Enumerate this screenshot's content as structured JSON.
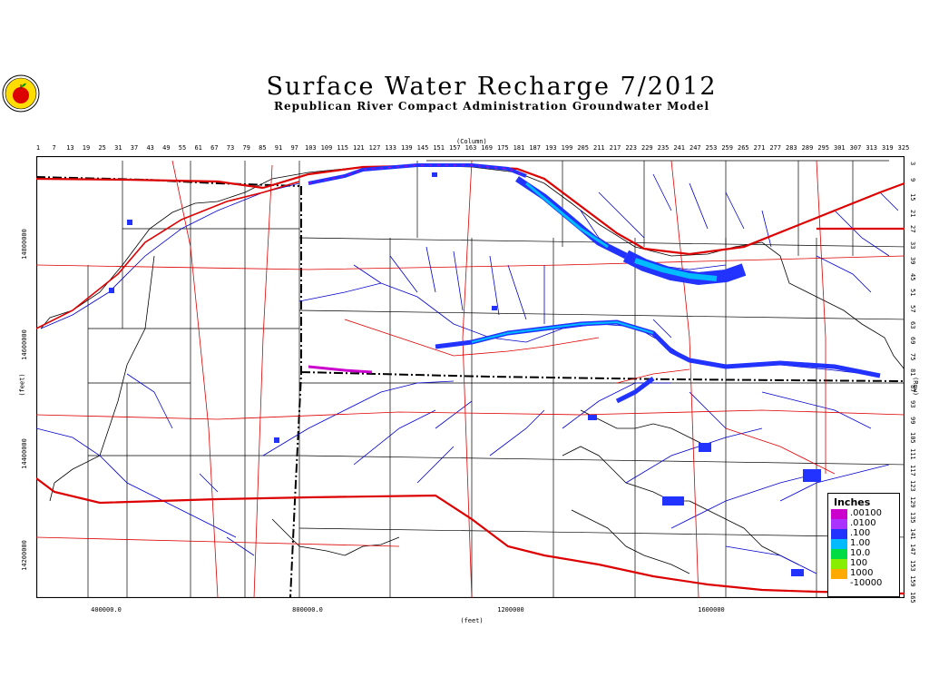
{
  "title": "Surface Water Recharge 7/2012",
  "subtitle": "Republican River Compact Administration Groundwater Model",
  "axes": {
    "column_label": "(Column)",
    "row_label": "(Row)",
    "x_label": "(feet)",
    "y_label": "(feet)",
    "column_ticks": [
      "1",
      "7",
      "13",
      "19",
      "25",
      "31",
      "37",
      "43",
      "49",
      "55",
      "61",
      "67",
      "73",
      "79",
      "85",
      "91",
      "97",
      "103",
      "109",
      "115",
      "121",
      "127",
      "133",
      "139",
      "145",
      "151",
      "157",
      "163",
      "169",
      "175",
      "181",
      "187",
      "193",
      "199",
      "205",
      "211",
      "217",
      "223",
      "229",
      "235",
      "241",
      "247",
      "253",
      "259",
      "265",
      "271",
      "277",
      "283",
      "289",
      "295",
      "301",
      "307",
      "313",
      "319",
      "325"
    ],
    "row_ticks": [
      "3",
      "9",
      "15",
      "21",
      "27",
      "33",
      "39",
      "45",
      "51",
      "57",
      "63",
      "69",
      "75",
      "81",
      "87",
      "93",
      "99",
      "105",
      "111",
      "117",
      "123",
      "129",
      "135",
      "141",
      "147",
      "153",
      "159",
      "165"
    ],
    "x_ticks": [
      "400000.0",
      "800000.0",
      "1200000",
      "1600000"
    ],
    "y_ticks": [
      "14800000",
      "14600000",
      "14400000",
      "14200000"
    ]
  },
  "legend": {
    "title": "Inches",
    "entries": [
      {
        "label": ".00100",
        "color": "#cc00cc"
      },
      {
        "label": ".0100",
        "color": "#aa33ff"
      },
      {
        "label": ".100",
        "color": "#2233ff"
      },
      {
        "label": "1.00",
        "color": "#00bbff"
      },
      {
        "label": "10.0",
        "color": "#00dd44"
      },
      {
        "label": "100",
        "color": "#88ee00"
      },
      {
        "label": "1000",
        "color": "#ffaa00"
      },
      {
        "label": "-10000",
        "color": "#ffffff"
      }
    ]
  },
  "colors": {
    "rivers": "#0000cc",
    "roads": "#dd0000",
    "boundaries": "#000000",
    "recharge_low": "#cc00cc",
    "recharge_mid": "#2233ff",
    "recharge_high": "#00bbff"
  }
}
